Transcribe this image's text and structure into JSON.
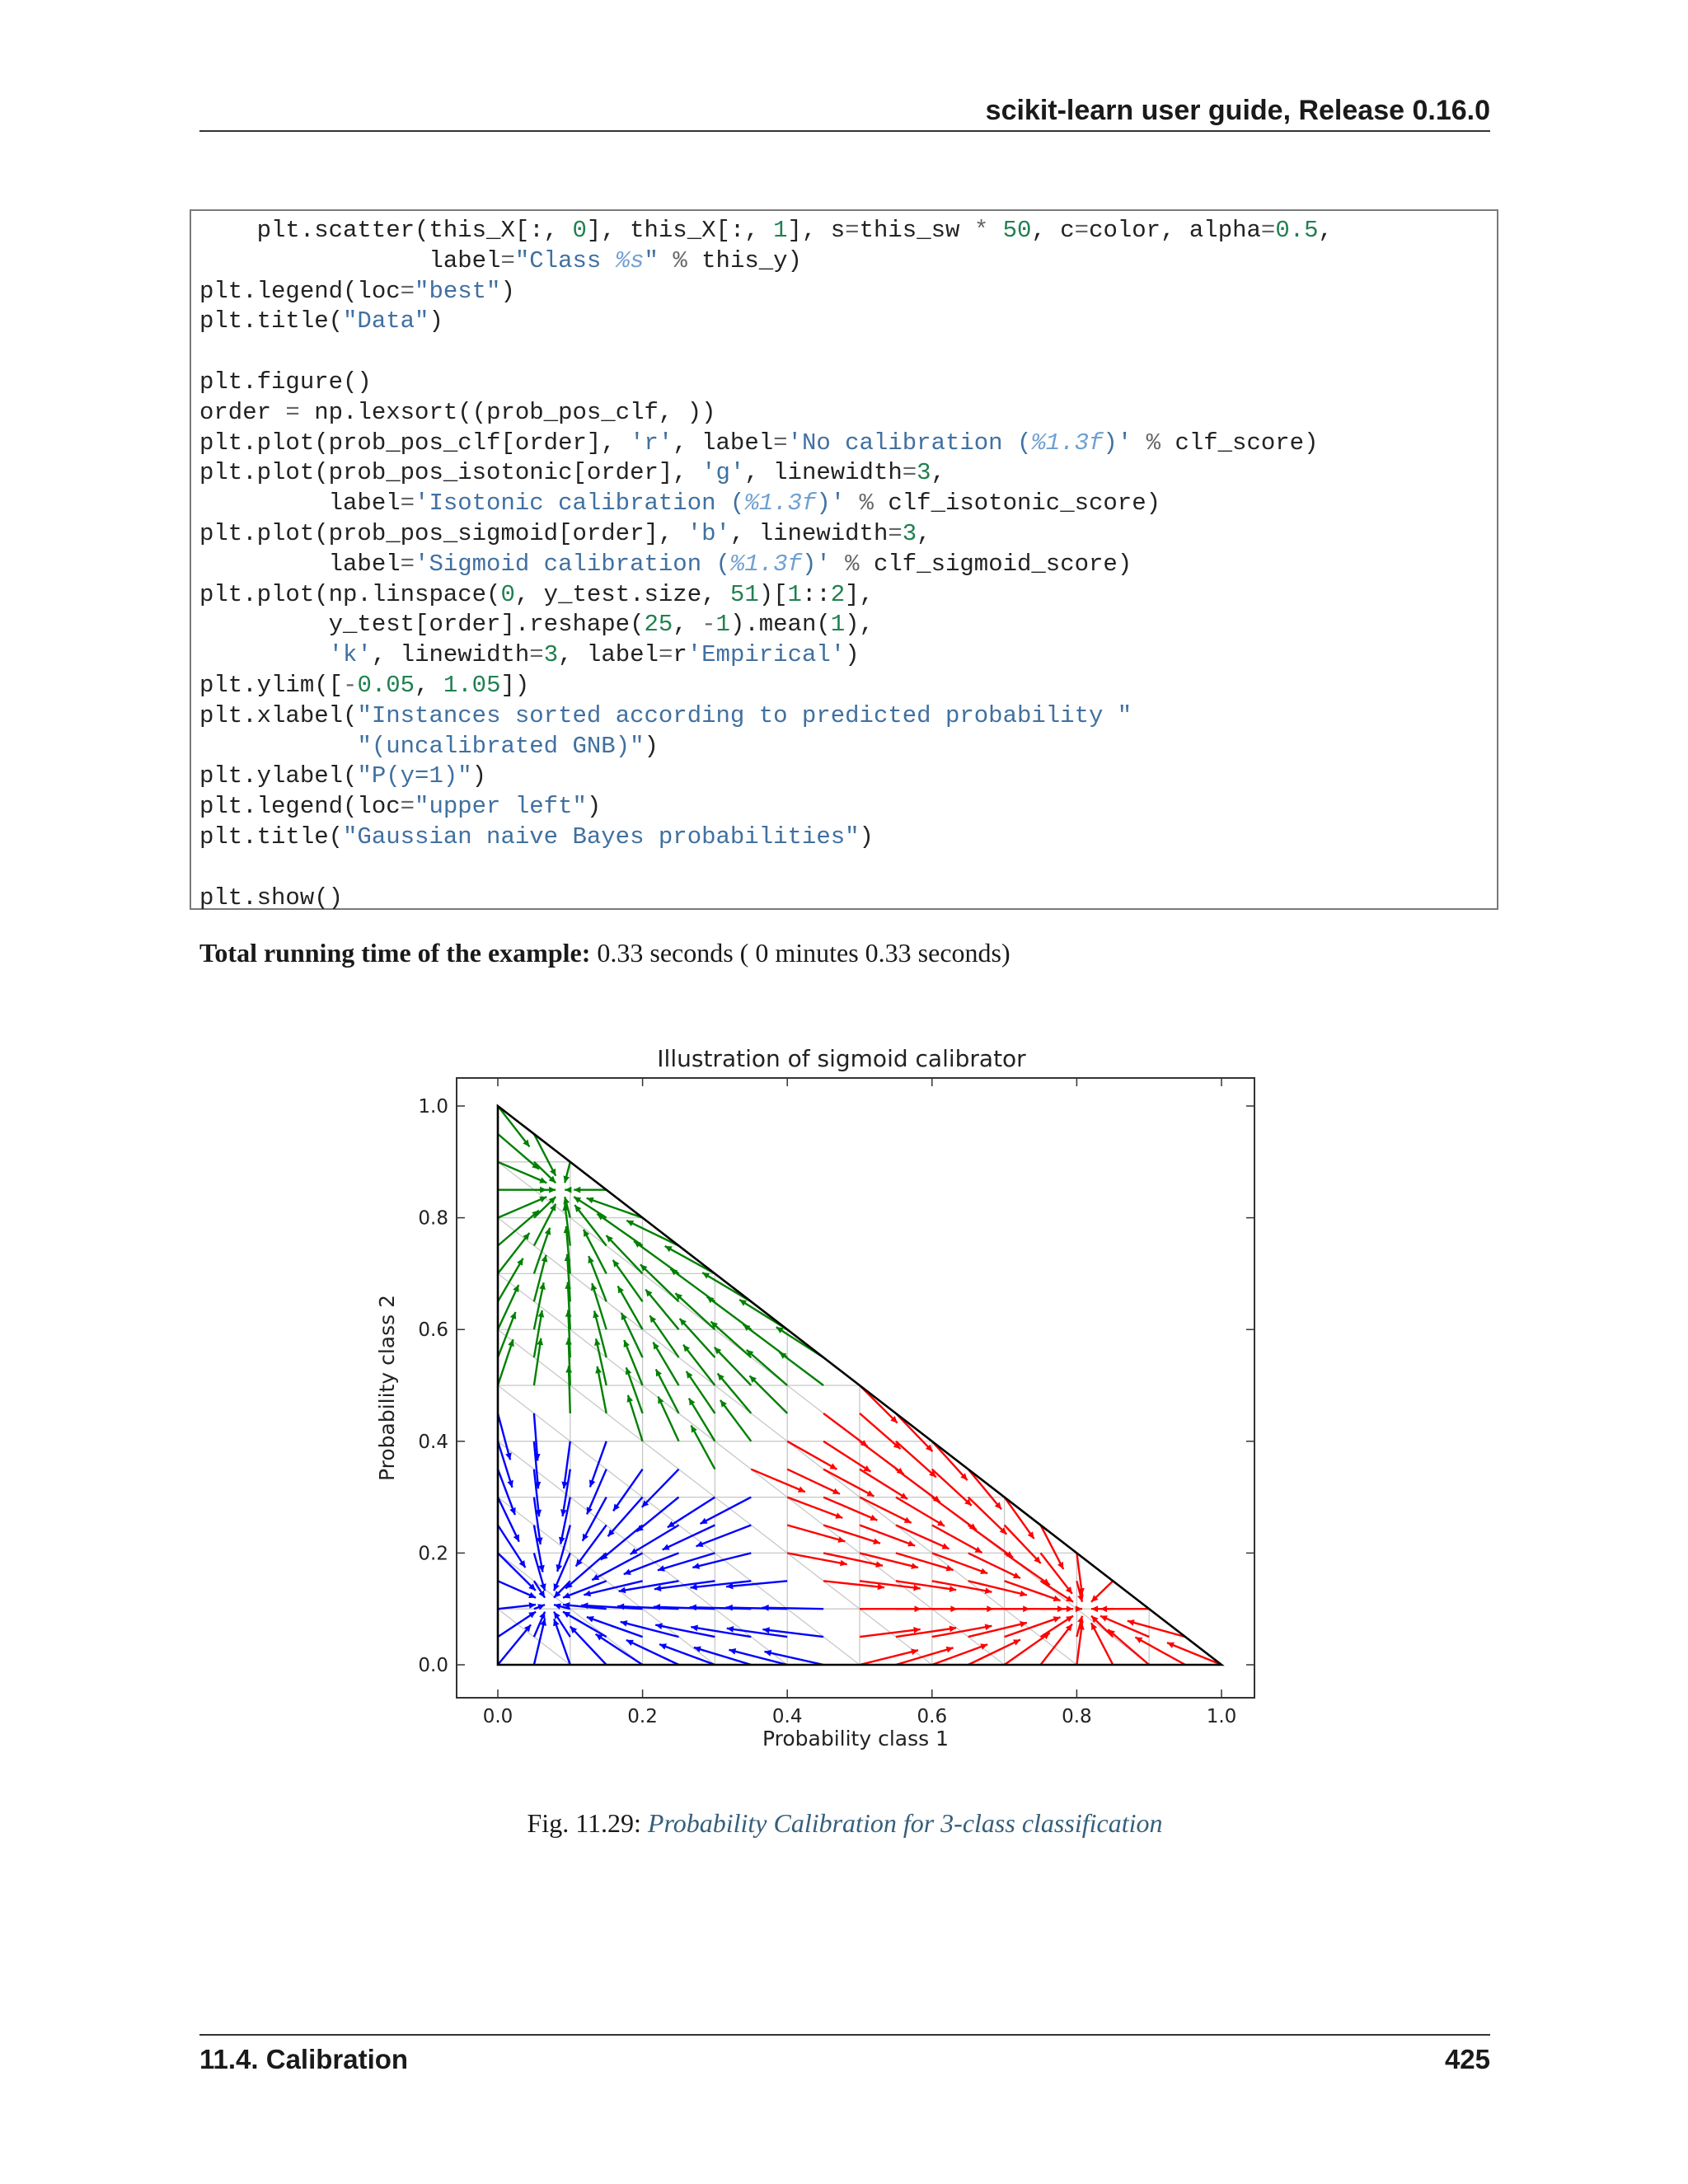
{
  "header": {
    "title": "scikit-learn user guide, Release 0.16.0"
  },
  "code": {
    "lines": [
      "    plt.scatter(this_X[:, 0], this_X[:, 1], s=this_sw * 50, c=color, alpha=0.5,",
      "                label=\"Class %s\" % this_y)",
      "plt.legend(loc=\"best\")",
      "plt.title(\"Data\")",
      "",
      "plt.figure()",
      "order = np.lexsort((prob_pos_clf, ))",
      "plt.plot(prob_pos_clf[order], 'r', label='No calibration (%1.3f)' % clf_score)",
      "plt.plot(prob_pos_isotonic[order], 'g', linewidth=3,",
      "         label='Isotonic calibration (%1.3f)' % clf_isotonic_score)",
      "plt.plot(prob_pos_sigmoid[order], 'b', linewidth=3,",
      "         label='Sigmoid calibration (%1.3f)' % clf_sigmoid_score)",
      "plt.plot(np.linspace(0, y_test.size, 51)[1::2],",
      "         y_test[order].reshape(25, -1).mean(1),",
      "         'k', linewidth=3, label=r'Empirical')",
      "plt.ylim([-0.05, 1.05])",
      "plt.xlabel(\"Instances sorted according to predicted probability \"",
      "           \"(uncalibrated GNB)\")",
      "plt.ylabel(\"P(y=1)\")",
      "plt.legend(loc=\"upper left\")",
      "plt.title(\"Gaussian naive Bayes probabilities\")",
      "",
      "plt.show()"
    ]
  },
  "runtime": {
    "label": "Total running time of the example:",
    "value": "0.33 seconds ( 0 minutes 0.33 seconds)"
  },
  "chart_data": {
    "type": "quiver",
    "title": "Illustration of sigmoid calibrator",
    "xlabel": "Probability class 1",
    "ylabel": "Probability class 2",
    "xlim": [
      0.0,
      1.0
    ],
    "ylim": [
      0.0,
      1.0
    ],
    "xticks": [
      "0.0",
      "0.2",
      "0.4",
      "0.6",
      "0.8",
      "1.0"
    ],
    "yticks": [
      "0.0",
      "0.2",
      "0.4",
      "0.6",
      "0.8",
      "1.0"
    ],
    "simplex_grid_step": 0.1,
    "attractors": {
      "class_1_red": [
        0.81,
        0.1
      ],
      "class_2_green": [
        0.09,
        0.85
      ],
      "class_3_blue": [
        0.07,
        0.11
      ]
    },
    "colors": {
      "class_1": "#ff0000",
      "class_2": "#008000",
      "class_3": "#0000ff",
      "grid": "#c8c8c8",
      "boundary": "#000000"
    }
  },
  "caption": {
    "prefix": "Fig.  11.29: ",
    "link": "Probability Calibration for 3-class classification"
  },
  "footer": {
    "section": "11.4.  Calibration",
    "page": "425"
  }
}
